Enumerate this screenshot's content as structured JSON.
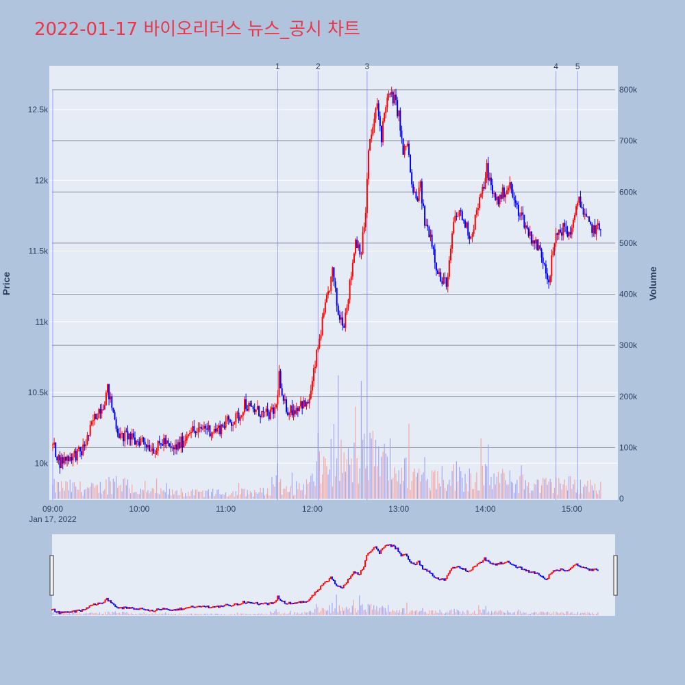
{
  "title": "2022-01-17 바이오리더스 뉴스_공시 차트",
  "colors": {
    "background": "#b0c4de",
    "plot_bg": "#e5ecf6",
    "title": "#e8364a",
    "up": "#ff0000",
    "down": "#0000ff",
    "vol_up": "#f4a6a6",
    "vol_down": "#a6a6f4",
    "event_line": "#8080ff"
  },
  "chart_data": {
    "type": "candlestick",
    "title": "2022-01-17 바이오리더스 뉴스_공시 차트",
    "ylabel": "Price",
    "y2label": "Volume",
    "x_date_label": "Jan 17, 2022",
    "x_ticks": [
      "09:00",
      "10:00",
      "11:00",
      "12:00",
      "13:00",
      "14:00",
      "15:00"
    ],
    "y_ticks": [
      "10k",
      "10.5k",
      "11k",
      "11.5k",
      "12k",
      "12.5k"
    ],
    "y_tick_values": [
      10000,
      10500,
      11000,
      11500,
      12000,
      12500
    ],
    "ylim": [
      9740,
      12810
    ],
    "y2_ticks": [
      "0",
      "100k",
      "200k",
      "300k",
      "400k",
      "500k",
      "600k",
      "700k",
      "800k"
    ],
    "y2_tick_values": [
      0,
      100000,
      200000,
      300000,
      400000,
      500000,
      600000,
      700000,
      800000
    ],
    "y2lim": [
      0,
      800000
    ],
    "xlim_minutes": [
      0,
      392
    ],
    "event_markers": [
      {
        "label": "1",
        "minute": 156
      },
      {
        "label": "2",
        "minute": 184
      },
      {
        "label": "3",
        "minute": 218
      },
      {
        "label": "4",
        "minute": 349
      },
      {
        "label": "5",
        "minute": 364
      }
    ],
    "price_path": [
      [
        0,
        10130
      ],
      [
        5,
        10010
      ],
      [
        10,
        10040
      ],
      [
        15,
        10060
      ],
      [
        20,
        10080
      ],
      [
        25,
        10200
      ],
      [
        28,
        10300
      ],
      [
        32,
        10380
      ],
      [
        35,
        10420
      ],
      [
        38,
        10520
      ],
      [
        41,
        10400
      ],
      [
        44,
        10270
      ],
      [
        47,
        10180
      ],
      [
        52,
        10200
      ],
      [
        57,
        10150
      ],
      [
        62,
        10170
      ],
      [
        67,
        10120
      ],
      [
        72,
        10100
      ],
      [
        77,
        10160
      ],
      [
        82,
        10090
      ],
      [
        87,
        10120
      ],
      [
        92,
        10180
      ],
      [
        95,
        10250
      ],
      [
        100,
        10210
      ],
      [
        105,
        10260
      ],
      [
        110,
        10230
      ],
      [
        115,
        10240
      ],
      [
        120,
        10290
      ],
      [
        125,
        10300
      ],
      [
        130,
        10340
      ],
      [
        133,
        10430
      ],
      [
        137,
        10380
      ],
      [
        142,
        10370
      ],
      [
        147,
        10340
      ],
      [
        152,
        10350
      ],
      [
        155,
        10400
      ],
      [
        157,
        10630
      ],
      [
        159,
        10440
      ],
      [
        163,
        10380
      ],
      [
        168,
        10380
      ],
      [
        172,
        10430
      ],
      [
        176,
        10400
      ],
      [
        179,
        10500
      ],
      [
        182,
        10700
      ],
      [
        186,
        10940
      ],
      [
        190,
        11150
      ],
      [
        194,
        11350
      ],
      [
        198,
        11050
      ],
      [
        202,
        11000
      ],
      [
        206,
        11260
      ],
      [
        210,
        11580
      ],
      [
        214,
        11500
      ],
      [
        217,
        11780
      ],
      [
        219,
        12200
      ],
      [
        222,
        12380
      ],
      [
        225,
        12530
      ],
      [
        228,
        12310
      ],
      [
        231,
        12550
      ],
      [
        234,
        12600
      ],
      [
        237,
        12570
      ],
      [
        240,
        12460
      ],
      [
        243,
        12180
      ],
      [
        246,
        12270
      ],
      [
        249,
        11950
      ],
      [
        252,
        11860
      ],
      [
        255,
        11950
      ],
      [
        258,
        11700
      ],
      [
        262,
        11620
      ],
      [
        266,
        11400
      ],
      [
        270,
        11270
      ],
      [
        274,
        11300
      ],
      [
        278,
        11700
      ],
      [
        282,
        11780
      ],
      [
        286,
        11690
      ],
      [
        290,
        11600
      ],
      [
        294,
        11780
      ],
      [
        298,
        11920
      ],
      [
        301,
        12090
      ],
      [
        305,
        11900
      ],
      [
        309,
        11860
      ],
      [
        313,
        11920
      ],
      [
        317,
        11960
      ],
      [
        321,
        11820
      ],
      [
        325,
        11760
      ],
      [
        329,
        11650
      ],
      [
        333,
        11580
      ],
      [
        337,
        11520
      ],
      [
        341,
        11420
      ],
      [
        344,
        11290
      ],
      [
        347,
        11500
      ],
      [
        350,
        11630
      ],
      [
        354,
        11660
      ],
      [
        358,
        11620
      ],
      [
        362,
        11720
      ],
      [
        365,
        11900
      ],
      [
        368,
        11760
      ],
      [
        372,
        11680
      ],
      [
        376,
        11650
      ],
      [
        380,
        11660
      ]
    ],
    "volume_path": [
      [
        0,
        25000
      ],
      [
        10,
        25000
      ],
      [
        30,
        20000
      ],
      [
        45,
        40000
      ],
      [
        60,
        15000
      ],
      [
        90,
        12000
      ],
      [
        120,
        12000
      ],
      [
        150,
        15000
      ],
      [
        156,
        60000
      ],
      [
        160,
        15000
      ],
      [
        178,
        30000
      ],
      [
        185,
        60000
      ],
      [
        195,
        95000
      ],
      [
        205,
        70000
      ],
      [
        215,
        85000
      ],
      [
        222,
        95000
      ],
      [
        230,
        75000
      ],
      [
        245,
        55000
      ],
      [
        260,
        45000
      ],
      [
        280,
        50000
      ],
      [
        300,
        45000
      ],
      [
        320,
        35000
      ],
      [
        340,
        28000
      ],
      [
        360,
        30000
      ],
      [
        380,
        25000
      ]
    ]
  }
}
